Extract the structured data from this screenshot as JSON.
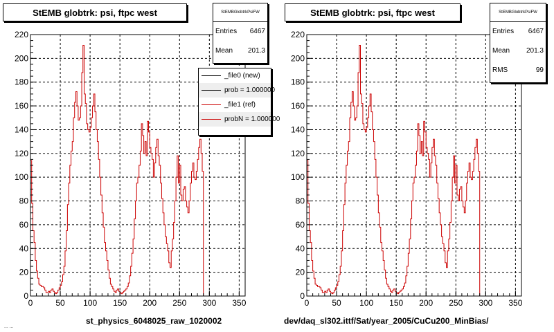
{
  "colors": {
    "hist_new": "#000000",
    "hist_ref": "#cc0000",
    "frame": "#000000",
    "grid": "#000000"
  },
  "corner_text": "... ...",
  "chart_data": [
    {
      "type": "line",
      "title": "StEMB globtrk: psi, ftpc west",
      "xlabel": "st_physics_6048025_raw_1020002",
      "xlim": [
        0,
        360
      ],
      "ylim": [
        0,
        220
      ],
      "x_ticks": [
        0,
        50,
        100,
        150,
        200,
        250,
        300,
        350
      ],
      "y_ticks": [
        0,
        20,
        40,
        60,
        80,
        100,
        120,
        140,
        160,
        180,
        200,
        220
      ],
      "grid": true,
      "bin_width": 2,
      "stats": {
        "name": "StEMBGlobtrkPsiFW",
        "entries_label": "Entries",
        "entries": "6467",
        "mean_label": "Mean",
        "mean": "201.3"
      },
      "legend": {
        "placement": "top-right",
        "entries": [
          "_file0 (new)",
          "prob = 1.000000",
          "_file1 (ref)",
          "probN = 1.000000"
        ]
      },
      "series": [
        {
          "name": "_file0 (new)",
          "color": "#000000"
        },
        {
          "name": "_file1 (ref)",
          "color": "#cc0000"
        }
      ]
    },
    {
      "type": "line",
      "title": "StEMB globtrk: psi, ftpc west",
      "xlabel": "dev/daq_sl302.ittf/Sat/year_2005/CuCu200_MinBias/",
      "xlim": [
        0,
        360
      ],
      "ylim": [
        0,
        220
      ],
      "x_ticks": [
        0,
        50,
        100,
        150,
        200,
        250,
        300,
        350
      ],
      "y_ticks": [
        0,
        20,
        40,
        60,
        80,
        100,
        120,
        140,
        160,
        180,
        200,
        220
      ],
      "grid": true,
      "bin_width": 2,
      "stats": {
        "name": "StEMBGlobtrkPsiFW",
        "entries_label": "Entries",
        "entries": "6467",
        "mean_label": "Mean",
        "mean": "201.3",
        "rms_label": "RMS",
        "rms": "99"
      },
      "series": [
        {
          "name": "_file0 (new)",
          "color": "#cc0000"
        }
      ]
    }
  ],
  "psi_hist": {
    "x_start": 0,
    "bin_width": 2,
    "values": [
      114,
      78,
      55,
      45,
      30,
      21,
      15,
      10,
      9,
      8,
      8,
      7,
      5,
      3,
      3,
      4,
      3,
      5,
      6,
      4,
      3,
      2,
      3,
      5,
      7,
      9,
      12,
      18,
      25,
      38,
      55,
      77,
      95,
      110,
      122,
      130,
      150,
      163,
      172,
      160,
      148,
      150,
      160,
      188,
      211,
      170,
      162,
      145,
      140,
      138,
      142,
      150,
      160,
      170,
      155,
      140,
      130,
      115,
      100,
      85,
      70,
      58,
      45,
      38,
      30,
      22,
      15,
      10,
      8,
      6,
      4,
      3,
      5,
      6,
      4,
      3,
      2,
      3,
      4,
      5,
      6,
      8,
      11,
      17,
      25,
      36,
      48,
      65,
      80,
      95,
      100,
      110,
      122,
      145,
      135,
      120,
      130,
      118,
      147,
      138,
      125,
      120,
      115,
      100,
      112,
      125,
      132,
      118,
      110,
      95,
      82,
      70,
      60,
      50,
      44,
      38,
      28,
      24,
      38,
      48,
      62,
      80,
      100,
      118,
      95,
      110,
      85,
      80,
      90,
      92,
      80,
      75,
      70,
      80,
      95,
      105,
      112,
      100,
      98,
      105,
      115,
      125,
      132,
      120,
      105
    ]
  }
}
